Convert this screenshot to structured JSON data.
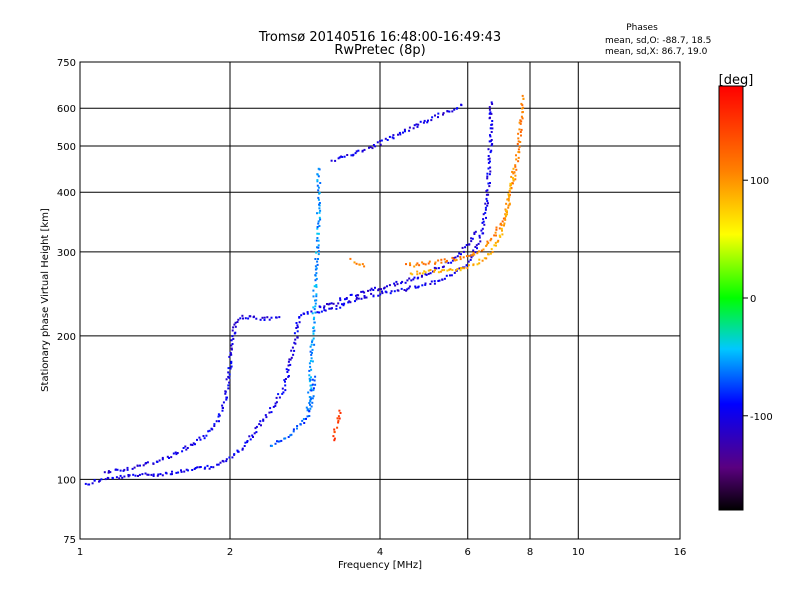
{
  "chart_data": {
    "type": "scatter",
    "title": "Tromsø 20140516 16:48:00-16:49:43",
    "subtitle": "RwPretec (8p)",
    "xlabel": "Frequency [MHz]",
    "ylabel": "Stationary phase Virtual Height [km]",
    "x_scale": "log",
    "y_scale": "log",
    "xlim": [
      1,
      16
    ],
    "ylim": [
      75,
      750
    ],
    "x_ticks": [
      1,
      2,
      4,
      6,
      8,
      10,
      16
    ],
    "y_ticks": [
      75,
      100,
      200,
      300,
      400,
      500,
      600,
      750
    ],
    "grid": true,
    "legend": {
      "heading": "Phases",
      "lines": [
        "mean, sd,O: -88.7, 18.5",
        "mean, sd,X:  86.7, 19.0"
      ]
    },
    "colorbar": {
      "label": "[deg]",
      "range": [
        -180,
        180
      ],
      "ticks": [
        100,
        0,
        -100
      ]
    },
    "series": [
      {
        "traces": [
          {
            "phase": -100,
            "points": [
              [
                1.02,
                98
              ],
              [
                1.08,
                100
              ],
              [
                1.15,
                101
              ],
              [
                1.25,
                102
              ],
              [
                1.35,
                103
              ],
              [
                1.45,
                103
              ],
              [
                1.55,
                104
              ],
              [
                1.65,
                105
              ],
              [
                1.75,
                106
              ],
              [
                1.85,
                107
              ],
              [
                1.95,
                110
              ],
              [
                2.05,
                114
              ],
              [
                2.15,
                120
              ],
              [
                2.25,
                128
              ],
              [
                2.35,
                136
              ],
              [
                2.45,
                145
              ],
              [
                2.55,
                155
              ],
              [
                2.6,
                168
              ],
              [
                2.65,
                182
              ],
              [
                2.7,
                198
              ],
              [
                2.72,
                212
              ],
              [
                2.75,
                220
              ],
              [
                2.8,
                225
              ],
              [
                2.9,
                226
              ]
            ]
          },
          {
            "phase": -100,
            "points": [
              [
                1.12,
                104
              ],
              [
                1.25,
                106
              ],
              [
                1.4,
                109
              ],
              [
                1.5,
                112
              ],
              [
                1.6,
                116
              ],
              [
                1.7,
                120
              ],
              [
                1.8,
                126
              ],
              [
                1.88,
                134
              ],
              [
                1.94,
                145
              ],
              [
                1.97,
                160
              ],
              [
                2.0,
                180
              ],
              [
                2.02,
                200
              ],
              [
                2.04,
                215
              ],
              [
                2.1,
                220
              ],
              [
                2.2,
                219
              ],
              [
                2.35,
                218
              ],
              [
                2.5,
                220
              ]
            ]
          },
          {
            "phase": -100,
            "points": [
              [
                3.0,
                225
              ],
              [
                3.2,
                229
              ],
              [
                3.4,
                235
              ],
              [
                3.6,
                240
              ],
              [
                3.8,
                244
              ],
              [
                4.0,
                247
              ],
              [
                4.3,
                250
              ],
              [
                4.6,
                253
              ],
              [
                5.0,
                258
              ],
              [
                5.3,
                264
              ],
              [
                5.6,
                272
              ],
              [
                5.9,
                282
              ],
              [
                6.1,
                295
              ],
              [
                6.3,
                318
              ],
              [
                6.45,
                350
              ],
              [
                6.55,
                400
              ],
              [
                6.6,
                450
              ],
              [
                6.63,
                500
              ],
              [
                6.65,
                560
              ],
              [
                6.67,
                620
              ]
            ]
          },
          {
            "phase": -105,
            "points": [
              [
                3.0,
                229
              ],
              [
                3.2,
                235
              ],
              [
                3.5,
                244
              ],
              [
                3.8,
                250
              ],
              [
                4.1,
                255
              ],
              [
                4.5,
                262
              ],
              [
                4.9,
                270
              ],
              [
                5.2,
                278
              ],
              [
                5.5,
                288
              ],
              [
                5.8,
                300
              ],
              [
                6.0,
                312
              ],
              [
                6.2,
                332
              ]
            ]
          },
          {
            "phase": -100,
            "points": [
              [
                3.2,
                470
              ],
              [
                3.5,
                480
              ],
              [
                3.9,
                505
              ],
              [
                4.3,
                530
              ],
              [
                4.7,
                555
              ],
              [
                5.0,
                570
              ],
              [
                5.4,
                590
              ],
              [
                5.8,
                612
              ]
            ]
          },
          {
            "phase": -55,
            "points": [
              [
                2.85,
                140
              ],
              [
                2.88,
                155
              ],
              [
                2.9,
                175
              ],
              [
                2.92,
                200
              ],
              [
                2.94,
                225
              ],
              [
                2.95,
                250
              ],
              [
                2.96,
                275
              ],
              [
                2.98,
                300
              ],
              [
                3.0,
                320
              ],
              [
                3.0,
                350
              ],
              [
                3.0,
                400
              ],
              [
                3.0,
                450
              ]
            ]
          },
          {
            "phase": -70,
            "points": [
              [
                2.4,
                118
              ],
              [
                2.6,
                124
              ],
              [
                2.75,
                130
              ],
              [
                2.85,
                136
              ],
              [
                2.9,
                145
              ],
              [
                2.95,
                165
              ]
            ]
          },
          {
            "phase": 110,
            "points": [
              [
                4.5,
                282
              ],
              [
                4.9,
                285
              ],
              [
                5.3,
                288
              ],
              [
                5.7,
                292
              ],
              [
                6.1,
                296
              ],
              [
                6.5,
                310
              ],
              [
                6.8,
                330
              ],
              [
                7.1,
                360
              ],
              [
                7.3,
                400
              ],
              [
                7.45,
                450
              ],
              [
                7.55,
                500
              ],
              [
                7.62,
                560
              ],
              [
                7.7,
                640
              ]
            ]
          },
          {
            "phase": 90,
            "points": [
              [
                4.6,
                272
              ],
              [
                5.0,
                274
              ],
              [
                5.4,
                276
              ],
              [
                5.8,
                278
              ],
              [
                6.2,
                285
              ],
              [
                6.6,
                298
              ],
              [
                6.9,
                320
              ],
              [
                7.1,
                355
              ],
              [
                7.25,
                400
              ],
              [
                7.38,
                450
              ]
            ]
          },
          {
            "phase": 110,
            "points": [
              [
                3.5,
                290
              ],
              [
                3.6,
                285
              ],
              [
                3.7,
                281
              ]
            ]
          },
          {
            "phase": 150,
            "points": [
              [
                3.2,
                122
              ],
              [
                3.25,
                130
              ],
              [
                3.3,
                140
              ]
            ]
          }
        ]
      }
    ]
  }
}
